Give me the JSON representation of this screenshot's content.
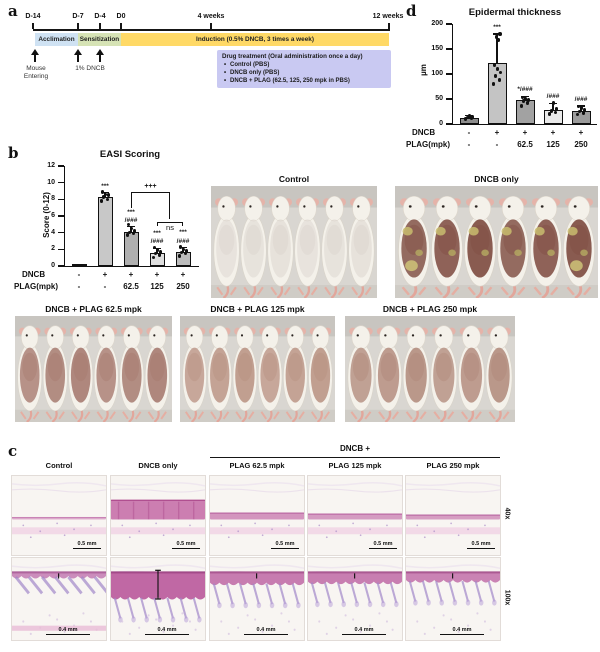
{
  "figure": {
    "panel_labels": {
      "a": "a",
      "b": "b",
      "c": "c",
      "d": "d"
    }
  },
  "panel_a": {
    "ticks": [
      "D-14",
      "D-7",
      "D-4",
      "D0",
      "4 weeks",
      "12 weeks"
    ],
    "phases": [
      {
        "label": "Acclimation",
        "color": "#cfe2f3"
      },
      {
        "label": "Sensitization",
        "color": "#d6e3b5"
      },
      {
        "label": "Induction (0.5% DNCB, 3 times a week)",
        "color": "#ffd966"
      }
    ],
    "arrow_labels": [
      "Mouse\nEntering",
      "1% DNCB"
    ],
    "treatment_box": {
      "color": "#c9c9f2",
      "title": "Drug treatment (Oral administration once a day)",
      "items": [
        "Control (PBS)",
        "DNCB only (PBS)",
        "DNCB + PLAG (62.5, 125, 250 mpk in PBS)"
      ]
    }
  },
  "panel_b": {
    "photos": [
      {
        "label": "Control",
        "lesion": "#d6cdc8",
        "opacity": 0.45,
        "crust": false
      },
      {
        "label": "DNCB only",
        "lesion": "#7d4a3f",
        "opacity": 0.95,
        "crust": true
      },
      {
        "label": "DNCB + PLAG 62.5 mpk",
        "lesion": "#a3756a",
        "opacity": 0.9,
        "crust": false
      },
      {
        "label": "DNCB + PLAG 125 mpk",
        "lesion": "#b58b7b",
        "opacity": 0.85,
        "crust": false
      },
      {
        "label": "DNCB + PLAG 250 mpk",
        "lesion": "#ac8273",
        "opacity": 0.85,
        "crust": false
      }
    ]
  },
  "panel_c": {
    "group_header": "DNCB +",
    "columns": [
      "Control",
      "DNCB only",
      "PLAG 62.5 mpk",
      "PLAG 125 mpk",
      "PLAG 250 mpk"
    ],
    "rows": [
      {
        "mag": "40x",
        "scale": "0.5 mm"
      },
      {
        "mag": "100x",
        "scale": "0.4 mm"
      }
    ]
  },
  "chart_data": [
    {
      "type": "bar",
      "panel": "b",
      "title": "EASI Scoring",
      "xlabel": "",
      "ylabel": "Score (0-12)",
      "ylim": [
        0,
        12
      ],
      "yticks": [
        0,
        2,
        4,
        6,
        8,
        10,
        12
      ],
      "categories": [
        "Control",
        "DNCB only",
        "DNCB + PLAG 62.5",
        "DNCB + PLAG 125",
        "DNCB + PLAG 250"
      ],
      "x_rows": [
        {
          "label": "DNCB",
          "values": [
            "-",
            "+",
            "+",
            "+",
            "+"
          ]
        },
        {
          "label": "PLAG(mpk)",
          "values": [
            "-",
            "-",
            "62.5",
            "125",
            "250"
          ]
        }
      ],
      "values": [
        0.08,
        8.3,
        4.1,
        1.6,
        1.7
      ],
      "errors": [
        0.05,
        0.5,
        0.6,
        0.5,
        0.5
      ],
      "points": [
        [
          0.05,
          0.05,
          0.05,
          0.05,
          0.05,
          0.05
        ],
        [
          7.8,
          8.0,
          8.3,
          8.5,
          8.6,
          8.9
        ],
        [
          3.7,
          3.9,
          4.0,
          4.2,
          4.5,
          5.0
        ],
        [
          1.0,
          1.3,
          1.5,
          1.7,
          1.9,
          2.2
        ],
        [
          1.2,
          1.5,
          1.6,
          1.8,
          2.0,
          2.3
        ]
      ],
      "annotations": [
        "",
        "***",
        "***\n/###",
        "***\n/###",
        "***\n/###"
      ],
      "comparisons": [
        {
          "label": "+++"
        },
        {
          "label": "ns"
        }
      ],
      "bar_colors": [
        "#4a4a4a",
        "#c8c8c8",
        "#b0b0b0",
        "#dedede",
        "#bcbcbc"
      ],
      "grid": false,
      "legend": "none"
    },
    {
      "type": "bar",
      "panel": "d",
      "title": "Epidermal thickness",
      "xlabel": "",
      "ylabel": "µm",
      "ylim": [
        0,
        200
      ],
      "yticks": [
        0,
        50,
        100,
        150,
        200
      ],
      "categories": [
        "Control",
        "DNCB only",
        "DNCB + PLAG 62.5",
        "DNCB + PLAG 125",
        "DNCB + PLAG 250"
      ],
      "x_rows": [
        {
          "label": "DNCB",
          "values": [
            "-",
            "+",
            "+",
            "+",
            "+"
          ]
        },
        {
          "label": "PLAG(mpk)",
          "values": [
            "-",
            "-",
            "62.5",
            "125",
            "250"
          ]
        }
      ],
      "values": [
        13,
        122,
        48,
        28,
        27
      ],
      "errors": [
        4,
        58,
        7,
        13,
        9
      ],
      "points": [
        [
          10,
          12,
          13,
          14,
          16
        ],
        [
          80,
          88,
          96,
          103,
          110,
          118,
          168,
          174,
          180
        ],
        [
          36,
          42,
          46,
          48,
          50,
          53
        ],
        [
          20,
          23,
          26,
          30,
          42
        ],
        [
          19,
          22,
          25,
          28,
          32,
          35
        ]
      ],
      "annotations": [
        "",
        "***",
        "*/###",
        "/###",
        "/###"
      ],
      "bar_colors": [
        "#8e8e8e",
        "#c4c4c4",
        "#a2a2a2",
        "#eaeaea",
        "#9c9c9c"
      ],
      "grid": false,
      "legend": "none"
    }
  ]
}
